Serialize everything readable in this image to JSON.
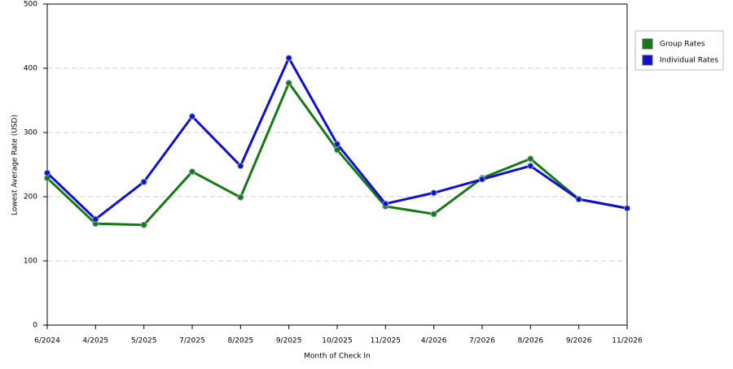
{
  "chart_data": {
    "type": "line",
    "x_label": "Month of Check In",
    "y_label": "Lowest Average Rate (USD)",
    "categories": [
      "6/2024",
      "4/2025",
      "5/2025",
      "7/2025",
      "8/2025",
      "9/2025",
      "10/2025",
      "11/2025",
      "4/2026",
      "7/2026",
      "8/2026",
      "9/2026",
      "11/2026"
    ],
    "series": [
      {
        "name": "Group Rates",
        "color": "#157a15",
        "values": [
          229,
          158,
          156,
          239,
          199,
          377,
          273,
          185,
          173,
          229,
          259,
          196,
          182
        ]
      },
      {
        "name": "Individual Rates",
        "color": "#1010d0",
        "values": [
          237,
          165,
          223,
          325,
          248,
          416,
          282,
          189,
          206,
          227,
          248,
          196,
          182
        ]
      }
    ],
    "ylim": [
      0,
      500
    ],
    "yticks": [
      0,
      100,
      200,
      300,
      400,
      500
    ],
    "grid": true,
    "legend": "right"
  }
}
